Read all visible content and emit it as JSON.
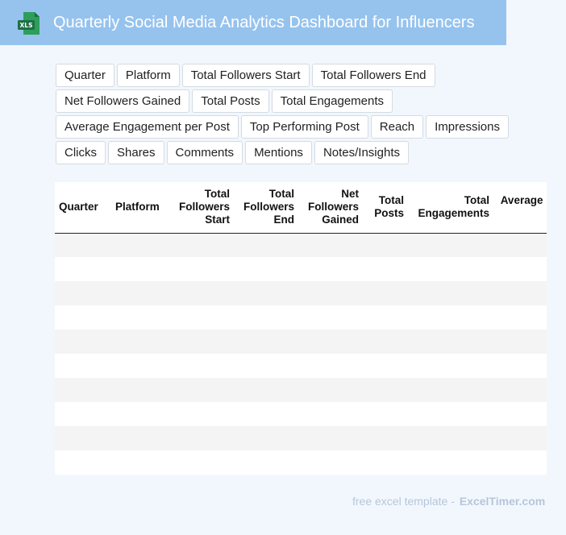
{
  "header": {
    "icon": "xls-file-icon",
    "icon_label": "XLS",
    "title": "Quarterly Social Media Analytics Dashboard for Influencers",
    "accent": "#96c3ee",
    "icon_color": "#1e7145"
  },
  "tags": [
    "Quarter",
    "Platform",
    "Total Followers Start",
    "Total Followers End",
    "Net Followers Gained",
    "Total Posts",
    "Total Engagements",
    "Average Engagement per Post",
    "Top Performing Post",
    "Reach",
    "Impressions",
    "Clicks",
    "Shares",
    "Comments",
    "Mentions",
    "Notes/Insights"
  ],
  "table": {
    "columns": [
      {
        "label": "Quarter",
        "align": "left"
      },
      {
        "label": "Platform",
        "align": "left"
      },
      {
        "label": "Total Followers Start",
        "align": "right"
      },
      {
        "label": "Total Followers End",
        "align": "right"
      },
      {
        "label": "Net Followers Gained",
        "align": "right"
      },
      {
        "label": "Total Posts",
        "align": "right"
      },
      {
        "label": "Total Engagements",
        "align": "right"
      },
      {
        "label": "Average Engagement per Post",
        "align": "right"
      }
    ],
    "row_count": 10
  },
  "footer": {
    "prefix": "free excel template -",
    "brand": "ExcelTimer.com"
  }
}
